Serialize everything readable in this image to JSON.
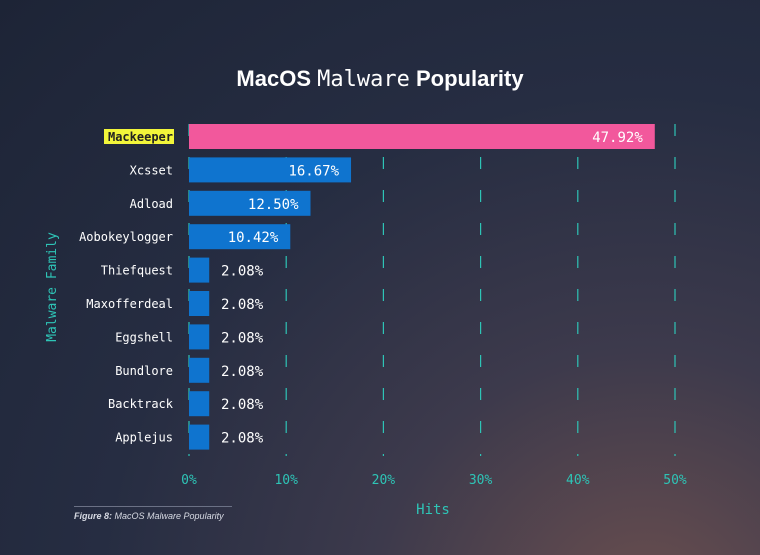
{
  "title": {
    "part1": "MacOS",
    "part2": "Malware",
    "part3": "Popularity"
  },
  "caption": {
    "label": "Figure 8:",
    "text": "MacOS Malware Popularity"
  },
  "colors": {
    "highlight_bar": "#f2589c",
    "bar": "#0f74cf",
    "axis": "#2ec4b6",
    "text": "#ffffff",
    "highlight_label_bg": "#f2f53a"
  },
  "chart_data": {
    "type": "bar",
    "orientation": "horizontal",
    "categories": [
      "Mackeeper",
      "Xcsset",
      "Adload",
      "Aobokeylogger",
      "Thiefquest",
      "Maxofferdeal",
      "Eggshell",
      "Bundlore",
      "Backtrack",
      "Applejus"
    ],
    "values": [
      47.92,
      16.67,
      12.5,
      10.42,
      2.08,
      2.08,
      2.08,
      2.08,
      2.08,
      2.08
    ],
    "value_labels": [
      "47.92%",
      "16.67%",
      "12.50%",
      "10.42%",
      "2.08%",
      "2.08%",
      "2.08%",
      "2.08%",
      "2.08%",
      "2.08%"
    ],
    "highlight_index": 0,
    "xlabel": "Hits",
    "ylabel": "Malware Family",
    "xlim": [
      0,
      50
    ],
    "xticks": [
      0,
      10,
      20,
      30,
      40,
      50
    ],
    "xtick_labels": [
      "0%",
      "10%",
      "20%",
      "30%",
      "40%",
      "50%"
    ],
    "grid": "vertical dashed"
  }
}
